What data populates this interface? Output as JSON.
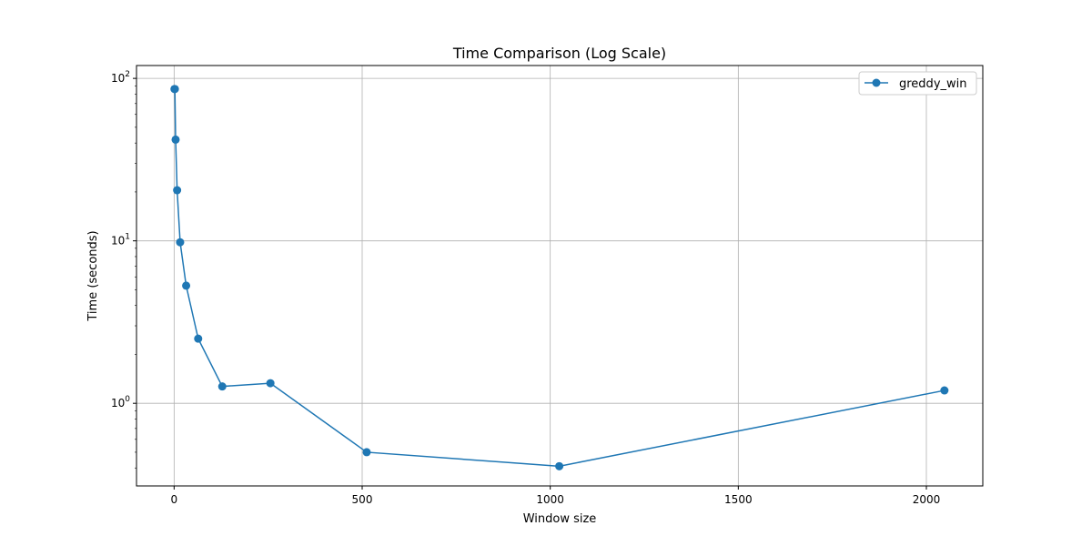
{
  "chart_data": {
    "type": "line",
    "title": "Time Comparison (Log Scale)",
    "xlabel": "Window size",
    "ylabel": "Time (seconds)",
    "xlim": [
      -100,
      2150
    ],
    "ylim": [
      0.31,
      120
    ],
    "yscale": "log",
    "grid": true,
    "legend_position": "top-right",
    "x_ticks": [
      0,
      500,
      1000,
      1500,
      2000
    ],
    "y_ticks": [
      {
        "value": 1,
        "base": "10",
        "exp": "0"
      },
      {
        "value": 10,
        "base": "10",
        "exp": "1"
      },
      {
        "value": 100,
        "base": "10",
        "exp": "2"
      }
    ],
    "series": [
      {
        "name": "greddy_win",
        "color": "#1f77b4",
        "marker": "circle",
        "x": [
          1,
          2,
          4,
          8,
          16,
          32,
          64,
          128,
          256,
          512,
          1024,
          2048
        ],
        "y": [
          86,
          86,
          42,
          20.5,
          9.8,
          5.3,
          2.5,
          1.27,
          1.33,
          0.5,
          0.41,
          1.2
        ]
      }
    ]
  }
}
